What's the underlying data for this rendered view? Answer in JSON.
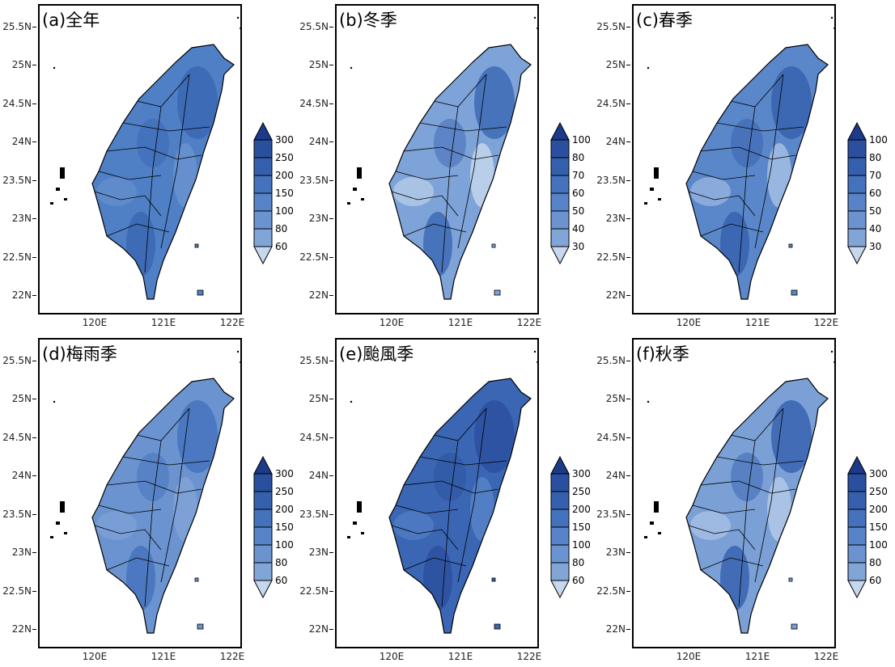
{
  "panels": [
    {
      "title": "(a)全年",
      "base": "#4f7fc4",
      "accent": "#3a66b3",
      "light": "#6a93d0",
      "colorbar_labels": [
        "300",
        "250",
        "200",
        "150",
        "100",
        "80",
        "60"
      ]
    },
    {
      "title": "(b)冬季",
      "base": "#7ea3d8",
      "accent": "#3a66b3",
      "light": "#c7d8ee",
      "colorbar_labels": [
        "100",
        "80",
        "70",
        "60",
        "50",
        "40",
        "30"
      ]
    },
    {
      "title": "(c)春季",
      "base": "#5a87c9",
      "accent": "#3560ae",
      "light": "#a9c2e6",
      "colorbar_labels": [
        "100",
        "80",
        "70",
        "60",
        "50",
        "40",
        "30"
      ]
    },
    {
      "title": "(d)梅雨季",
      "base": "#6a93d0",
      "accent": "#4472bc",
      "light": "#82a5d8",
      "colorbar_labels": [
        "300",
        "250",
        "200",
        "150",
        "100",
        "80",
        "60"
      ]
    },
    {
      "title": "(e)颱風季",
      "base": "#3a66b3",
      "accent": "#2a4f9e",
      "light": "#5784c8",
      "colorbar_labels": [
        "300",
        "250",
        "200",
        "150",
        "100",
        "80",
        "60"
      ]
    },
    {
      "title": "(f)秋季",
      "base": "#7aa0d6",
      "accent": "#3560ae",
      "light": "#b5cbea",
      "colorbar_labels": [
        "300",
        "250",
        "200",
        "150",
        "100",
        "80",
        "60"
      ]
    }
  ],
  "lat_labels": [
    "25.5N",
    "25N",
    "24.5N",
    "24N",
    "23.5N",
    "23N",
    "22.5N",
    "22N"
  ],
  "lon_labels": [
    "120E",
    "121E",
    "122E"
  ],
  "colorbar_colors": [
    "#1c3a8a",
    "#2a4f9e",
    "#3560ae",
    "#4472bc",
    "#5784c8",
    "#6a93d0",
    "#82a5d8",
    "#c7d8ee"
  ]
}
